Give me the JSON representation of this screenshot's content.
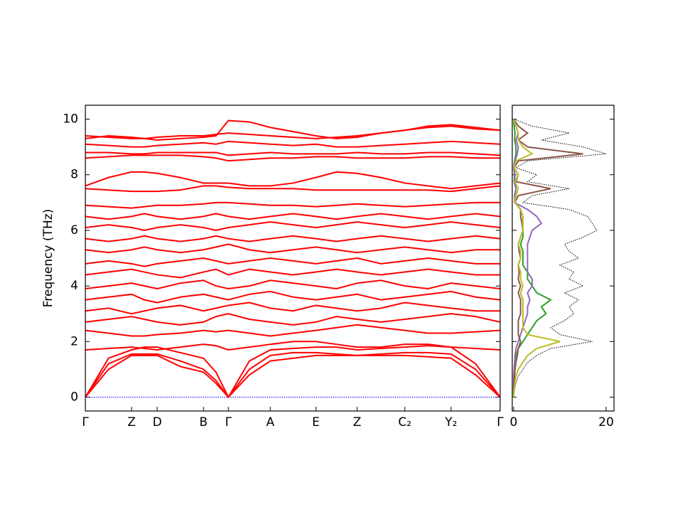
{
  "chart_data": [
    {
      "type": "line",
      "ylabel": "Frequency (THz)",
      "color": "#ff0000",
      "x": [
        0,
        0.325,
        0.65,
        0.83,
        1.01,
        1.335,
        1.66,
        1.835,
        2.01,
        2.305,
        2.6,
        2.92,
        3.24,
        3.53,
        3.82,
        4.155,
        4.49,
        4.815,
        5.14,
        5.485,
        5.83
      ],
      "xlim": [
        0,
        5.83
      ],
      "xticks": [
        {
          "value": 0,
          "label": "Γ"
        },
        {
          "value": 0.65,
          "label": "Z"
        },
        {
          "value": 1.01,
          "label": "D"
        },
        {
          "value": 1.66,
          "label": "B"
        },
        {
          "value": 2.01,
          "label": "Γ"
        },
        {
          "value": 2.6,
          "label": "A"
        },
        {
          "value": 3.24,
          "label": "E"
        },
        {
          "value": 3.82,
          "label": "Z"
        },
        {
          "value": 4.49,
          "label": "C₂"
        },
        {
          "value": 5.14,
          "label": "Y₂"
        },
        {
          "value": 5.83,
          "label": "Γ"
        }
      ],
      "ylim": [
        -0.5,
        10.5
      ],
      "yticks": [
        0,
        2,
        4,
        6,
        8,
        10
      ],
      "series": [
        {
          "color": "#0000ff",
          "linestyle": "dotted",
          "values": [
            0,
            0,
            0,
            0,
            0,
            0,
            0,
            0,
            0,
            0,
            0,
            0,
            0,
            0,
            0,
            0,
            0,
            0,
            0,
            0,
            0
          ]
        },
        {
          "values": [
            0,
            1.0,
            1.5,
            1.5,
            1.5,
            1.1,
            0.9,
            0.5,
            0,
            0.8,
            1.3,
            1.4,
            1.5,
            1.5,
            1.5,
            1.5,
            1.5,
            1.45,
            1.4,
            0.8,
            0
          ]
        },
        {
          "values": [
            0,
            1.2,
            1.55,
            1.55,
            1.55,
            1.3,
            1.0,
            0.6,
            0,
            1.0,
            1.5,
            1.6,
            1.6,
            1.55,
            1.5,
            1.55,
            1.6,
            1.6,
            1.55,
            1.0,
            0
          ]
        },
        {
          "values": [
            0,
            1.4,
            1.7,
            1.8,
            1.8,
            1.6,
            1.4,
            0.9,
            0,
            1.3,
            1.7,
            1.75,
            1.8,
            1.8,
            1.7,
            1.75,
            1.8,
            1.85,
            1.8,
            1.2,
            0
          ]
        },
        {
          "values": [
            1.7,
            1.75,
            1.8,
            1.75,
            1.7,
            1.8,
            1.9,
            1.85,
            1.7,
            1.8,
            1.9,
            2.0,
            2.0,
            1.9,
            1.8,
            1.8,
            1.9,
            1.9,
            1.8,
            1.75,
            1.7
          ]
        },
        {
          "values": [
            2.4,
            2.3,
            2.2,
            2.2,
            2.25,
            2.3,
            2.4,
            2.35,
            2.4,
            2.3,
            2.2,
            2.3,
            2.4,
            2.5,
            2.6,
            2.5,
            2.4,
            2.3,
            2.3,
            2.35,
            2.4
          ]
        },
        {
          "values": [
            2.7,
            2.8,
            2.9,
            2.8,
            2.7,
            2.6,
            2.7,
            2.9,
            3.0,
            2.8,
            2.7,
            2.6,
            2.7,
            2.9,
            2.8,
            2.7,
            2.8,
            2.9,
            3.0,
            2.9,
            2.7
          ]
        },
        {
          "values": [
            3.1,
            3.2,
            3.0,
            3.1,
            3.2,
            3.3,
            3.1,
            3.2,
            3.3,
            3.4,
            3.2,
            3.1,
            3.3,
            3.2,
            3.1,
            3.2,
            3.4,
            3.3,
            3.2,
            3.1,
            3.1
          ]
        },
        {
          "values": [
            3.5,
            3.6,
            3.7,
            3.5,
            3.4,
            3.6,
            3.7,
            3.6,
            3.5,
            3.7,
            3.8,
            3.6,
            3.5,
            3.6,
            3.7,
            3.5,
            3.6,
            3.7,
            3.8,
            3.6,
            3.5
          ]
        },
        {
          "values": [
            3.9,
            4.0,
            4.1,
            4.0,
            3.9,
            4.1,
            4.2,
            4.0,
            3.9,
            4.0,
            4.2,
            4.1,
            4.0,
            3.9,
            4.1,
            4.2,
            4.0,
            3.9,
            4.1,
            4.0,
            3.9
          ]
        },
        {
          "values": [
            4.4,
            4.5,
            4.6,
            4.5,
            4.4,
            4.3,
            4.5,
            4.6,
            4.4,
            4.6,
            4.5,
            4.4,
            4.5,
            4.6,
            4.5,
            4.4,
            4.5,
            4.6,
            4.5,
            4.4,
            4.4
          ]
        },
        {
          "values": [
            4.8,
            4.9,
            4.8,
            4.7,
            4.8,
            4.9,
            5.0,
            4.9,
            4.8,
            4.9,
            5.0,
            4.9,
            4.8,
            4.9,
            5.0,
            4.8,
            4.9,
            5.0,
            4.9,
            4.8,
            4.8
          ]
        },
        {
          "values": [
            5.3,
            5.2,
            5.3,
            5.4,
            5.3,
            5.2,
            5.3,
            5.4,
            5.5,
            5.3,
            5.2,
            5.3,
            5.4,
            5.3,
            5.2,
            5.3,
            5.4,
            5.3,
            5.2,
            5.3,
            5.3
          ]
        },
        {
          "values": [
            5.7,
            5.6,
            5.7,
            5.8,
            5.7,
            5.6,
            5.7,
            5.8,
            5.7,
            5.6,
            5.7,
            5.8,
            5.7,
            5.6,
            5.7,
            5.8,
            5.7,
            5.6,
            5.7,
            5.8,
            5.7
          ]
        },
        {
          "values": [
            6.1,
            6.2,
            6.1,
            6.0,
            6.1,
            6.2,
            6.1,
            6.0,
            6.1,
            6.2,
            6.3,
            6.2,
            6.1,
            6.2,
            6.3,
            6.2,
            6.1,
            6.2,
            6.3,
            6.2,
            6.1
          ]
        },
        {
          "values": [
            6.5,
            6.4,
            6.5,
            6.6,
            6.5,
            6.4,
            6.5,
            6.6,
            6.5,
            6.4,
            6.5,
            6.6,
            6.5,
            6.4,
            6.5,
            6.6,
            6.5,
            6.4,
            6.5,
            6.6,
            6.5
          ]
        },
        {
          "values": [
            6.9,
            6.85,
            6.8,
            6.85,
            6.9,
            6.9,
            6.95,
            7.0,
            7.0,
            6.95,
            6.9,
            6.9,
            6.85,
            6.9,
            6.95,
            6.9,
            6.85,
            6.9,
            6.95,
            7.0,
            7.0
          ]
        },
        {
          "values": [
            7.5,
            7.45,
            7.4,
            7.4,
            7.4,
            7.45,
            7.6,
            7.6,
            7.55,
            7.5,
            7.5,
            7.5,
            7.45,
            7.45,
            7.45,
            7.45,
            7.45,
            7.45,
            7.4,
            7.5,
            7.6
          ]
        },
        {
          "values": [
            7.6,
            7.9,
            8.1,
            8.1,
            8.05,
            7.9,
            7.7,
            7.7,
            7.7,
            7.6,
            7.6,
            7.7,
            7.9,
            8.1,
            8.05,
            7.9,
            7.7,
            7.6,
            7.5,
            7.6,
            7.7
          ]
        },
        {
          "values": [
            8.6,
            8.65,
            8.7,
            8.7,
            8.7,
            8.7,
            8.65,
            8.6,
            8.5,
            8.55,
            8.6,
            8.6,
            8.65,
            8.65,
            8.6,
            8.6,
            8.6,
            8.65,
            8.65,
            8.6,
            8.6
          ]
        },
        {
          "values": [
            8.8,
            8.8,
            8.75,
            8.75,
            8.8,
            8.8,
            8.8,
            8.8,
            8.7,
            8.75,
            8.8,
            8.75,
            8.75,
            8.75,
            8.8,
            8.75,
            8.75,
            8.8,
            8.8,
            8.75,
            8.7
          ]
        },
        {
          "values": [
            9.1,
            9.05,
            9.0,
            9.0,
            9.05,
            9.1,
            9.15,
            9.1,
            9.2,
            9.15,
            9.1,
            9.05,
            9.1,
            9.0,
            9.0,
            9.05,
            9.1,
            9.15,
            9.2,
            9.15,
            9.1
          ]
        },
        {
          "values": [
            9.4,
            9.35,
            9.3,
            9.3,
            9.35,
            9.4,
            9.4,
            9.45,
            9.5,
            9.45,
            9.4,
            9.35,
            9.3,
            9.35,
            9.4,
            9.5,
            9.6,
            9.7,
            9.75,
            9.65,
            9.6
          ]
        },
        {
          "values": [
            9.3,
            9.4,
            9.35,
            9.3,
            9.25,
            9.3,
            9.35,
            9.4,
            9.95,
            9.9,
            9.7,
            9.55,
            9.4,
            9.3,
            9.35,
            9.5,
            9.6,
            9.75,
            9.8,
            9.7,
            9.6
          ]
        }
      ]
    },
    {
      "type": "line",
      "orientation": "horizontal",
      "frequencies": [
        0,
        0.25,
        0.5,
        0.75,
        1,
        1.25,
        1.5,
        1.75,
        2,
        2.25,
        2.5,
        2.75,
        3,
        3.25,
        3.5,
        3.75,
        4,
        4.25,
        4.5,
        4.75,
        5,
        5.25,
        5.5,
        5.75,
        6,
        6.25,
        6.5,
        6.75,
        7,
        7.25,
        7.5,
        7.75,
        8,
        8.25,
        8.5,
        8.75,
        9,
        9.25,
        9.5,
        9.75,
        10
      ],
      "xlim": [
        -0.3,
        21.7
      ],
      "xticks": [
        0,
        20
      ],
      "ylim": [
        -0.5,
        10.5
      ],
      "yticks": [
        0,
        2,
        4,
        6,
        8,
        10
      ],
      "series": [
        {
          "color": "#000000",
          "linestyle": "dotted",
          "values": [
            0,
            0.2,
            0.5,
            1,
            2,
            3,
            5,
            8,
            17,
            10,
            8,
            11,
            13,
            12,
            14,
            11,
            15,
            12,
            13,
            10,
            14,
            12,
            11,
            15,
            18,
            17,
            16,
            12,
            2,
            4,
            12,
            3,
            5,
            0.5,
            3,
            20,
            15,
            6,
            12,
            4,
            0
          ]
        },
        {
          "color": "#2ca02c",
          "values": [
            0,
            0,
            0,
            0.1,
            0.2,
            0.3,
            0.5,
            1,
            2,
            3,
            4,
            5,
            7,
            6,
            8,
            5,
            4,
            3,
            3,
            2,
            2,
            2,
            1.5,
            2,
            2,
            2,
            2,
            1.5,
            0.3,
            0.2,
            0.5,
            0.1,
            0.2,
            0,
            0.2,
            0.5,
            0.5,
            0.2,
            0.3,
            0.1,
            0
          ]
        },
        {
          "color": "#9467bd",
          "values": [
            0,
            0,
            0,
            0,
            0.1,
            0.2,
            0.3,
            0.5,
            1,
            1.5,
            2,
            2.5,
            3,
            3,
            3.5,
            3,
            4,
            4,
            3,
            3,
            3,
            3,
            3,
            3.5,
            4,
            6,
            5,
            3,
            0.2,
            0.3,
            0.5,
            0.2,
            0.3,
            0,
            0.3,
            0.8,
            1,
            0.5,
            1,
            0.5,
            0
          ]
        },
        {
          "color": "#8c564b",
          "values": [
            0,
            0,
            0.1,
            0.2,
            0.3,
            0.5,
            0.8,
            1,
            1.5,
            1,
            1,
            1,
            1.5,
            1.5,
            1.5,
            1,
            1.5,
            1,
            1.2,
            1,
            1.5,
            1.2,
            1,
            1.5,
            2,
            1.8,
            1.5,
            1.5,
            0.3,
            1,
            8,
            0.5,
            1,
            0.1,
            1,
            15,
            3,
            1,
            3,
            1,
            0
          ]
        },
        {
          "color": "#bcbd22",
          "values": [
            0,
            0.1,
            0.3,
            0.5,
            1,
            2,
            3,
            5,
            10,
            3,
            2,
            2,
            2,
            2,
            2,
            1.5,
            2,
            1.5,
            1.5,
            1,
            1.5,
            1.5,
            1,
            1.5,
            2,
            2,
            2,
            1.5,
            0.3,
            0.5,
            1,
            0.3,
            1,
            0.1,
            0.5,
            4,
            2,
            1,
            1,
            0.5,
            0
          ]
        }
      ]
    }
  ]
}
